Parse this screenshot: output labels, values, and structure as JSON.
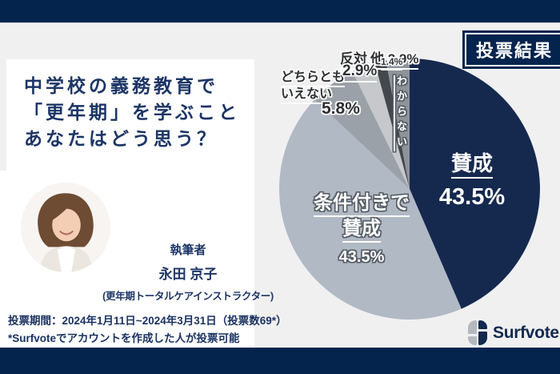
{
  "badge": {
    "label": "投票結果"
  },
  "question": {
    "line1": "中学校の義務教育で",
    "line2": "「更年期」を学ぶこと",
    "line3": "あなたはどう思う？"
  },
  "author": {
    "heading": "執筆者",
    "name": "永田 京子",
    "qualification": "(更年期トータルケアインストラクター)"
  },
  "footer": {
    "line1": "投票期間：2024年1月11日~2024年3月31日（投票数69*）",
    "line2": "*Surfvoteでアカウントを作成した人が投票可能"
  },
  "brand": {
    "name": "Surfvote"
  },
  "colors": {
    "navy_bar": "#04244e",
    "pie_navy": "#15294f",
    "text_navy": "#1c3566",
    "background_gray": "#f0f0f1",
    "panel_white": "#ffffff",
    "logo_gray": "#b4b8bf"
  },
  "chart_data": {
    "type": "pie",
    "title": "投票結果",
    "total_votes_note": "投票数69",
    "start_angle_deg": 0,
    "direction": "clockwise",
    "legend_position": "none",
    "segments": [
      {
        "label": "賛成",
        "value": 43.5,
        "color": "#15294f"
      },
      {
        "label": "条件付きで賛成",
        "value": 43.5,
        "color": "#b1b9c4"
      },
      {
        "label": "どちらともいえない",
        "value": 5.8,
        "color": "#9ba1a8"
      },
      {
        "label": "反対",
        "value": 2.9,
        "color": "#c6c8cb"
      },
      {
        "label": "わからない",
        "value": 1.4,
        "color": "#44484d"
      },
      {
        "label": "他",
        "value": 2.9,
        "color": "#8e939a"
      }
    ]
  },
  "pie_labels": {
    "sansei": "賛成",
    "sansei_pct": "43.5%",
    "joken_l1": "条件付きで",
    "joken_l2": "賛成",
    "joken_pct": "43.5%",
    "dochira_l1": "どちらとも",
    "dochira_l2": "いえない",
    "dochira_pct": "5.8%",
    "hantai": "反対",
    "hantai_pct": "2.9%",
    "hoka": "他 2.9%",
    "wakaranai_pct": "1.4%",
    "wakaranai": "わからない"
  }
}
